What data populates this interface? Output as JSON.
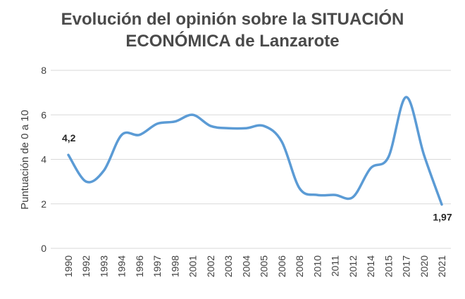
{
  "chart_data": {
    "type": "line",
    "title_lines": [
      "Evolución del opinión sobre la SITUACIÓN",
      "ECONÓMICA de Lanzarote"
    ],
    "xlabel": "",
    "ylabel": "Puntuación de 0 a 10",
    "ylim": [
      0,
      8
    ],
    "yticks": [
      0,
      2,
      4,
      6,
      8
    ],
    "grid": true,
    "legend": "none",
    "smooth": true,
    "categories": [
      "1990",
      "1992",
      "1993",
      "1994",
      "1996",
      "1997",
      "1998",
      "2001",
      "2002",
      "2003",
      "2004",
      "2005",
      "2006",
      "2008",
      "2010",
      "2011",
      "2012",
      "2014",
      "2015",
      "2017",
      "2020",
      "2021"
    ],
    "series": [
      {
        "name": "Puntuación",
        "color": "#5B9BD5",
        "values": [
          4.2,
          3.0,
          3.5,
          5.1,
          5.1,
          5.6,
          5.7,
          6.0,
          5.5,
          5.4,
          5.4,
          5.5,
          4.8,
          2.7,
          2.4,
          2.4,
          2.3,
          3.6,
          4.1,
          6.8,
          4.2,
          1.97
        ]
      }
    ],
    "data_labels": [
      {
        "index": 0,
        "text": "4,2",
        "position": "above"
      },
      {
        "index": 21,
        "text": "1,97",
        "position": "below"
      }
    ]
  }
}
